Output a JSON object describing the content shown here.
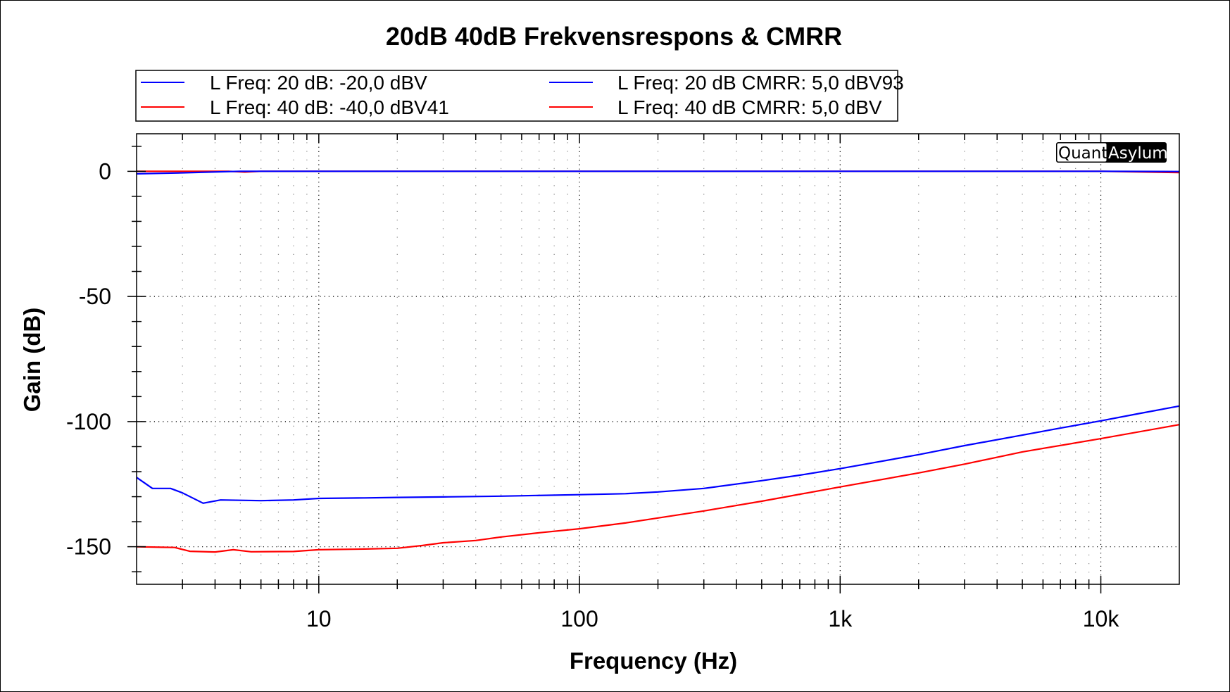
{
  "chart_data": {
    "type": "line",
    "title": "20dB 40dB Frekvensrespons & CMRR",
    "xlabel": "Frequency (Hz)",
    "ylabel": "Gain (dB)",
    "xscale": "log",
    "xlim": [
      2,
      20000
    ],
    "ylim": [
      -165,
      15
    ],
    "x_ticks": [
      {
        "value": 10,
        "label": "10"
      },
      {
        "value": 100,
        "label": "100"
      },
      {
        "value": 1000,
        "label": "1k"
      },
      {
        "value": 10000,
        "label": "10k"
      }
    ],
    "y_ticks": [
      {
        "value": 0,
        "label": "0"
      },
      {
        "value": -50,
        "label": "-50"
      },
      {
        "value": -100,
        "label": "-100"
      },
      {
        "value": -150,
        "label": "-150"
      }
    ],
    "y_minor_step": 10,
    "grid": true,
    "legend_position": "top",
    "watermark": {
      "part1": "Quant",
      "part2": "Asylum"
    },
    "series": [
      {
        "name": "L Freq: 20 dB: -20,0 dBV",
        "color": "#0000ff",
        "x": [
          2,
          3,
          5,
          10,
          100,
          1000,
          10000,
          20000
        ],
        "y": [
          -1.0,
          -0.6,
          0.0,
          0.0,
          0.0,
          0.0,
          0.0,
          -0.1
        ]
      },
      {
        "name": "L Freq: 40 dB: -40,0 dBV41",
        "color": "#ff0000",
        "x": [
          2,
          4.5,
          5.2,
          6,
          10,
          100,
          1000,
          10000,
          20000
        ],
        "y": [
          0.0,
          0.0,
          -0.3,
          0.0,
          0.0,
          0.0,
          0.0,
          0.0,
          -0.5
        ]
      },
      {
        "name": "L Freq: 20 dB CMRR: 5,0 dBV93",
        "color": "#0000ff",
        "x": [
          2,
          2.3,
          2.7,
          3,
          3.6,
          4.2,
          6,
          8,
          10,
          15,
          20,
          30,
          50,
          100,
          150,
          200,
          300,
          500,
          700,
          1000,
          2000,
          3000,
          5000,
          7000,
          10000,
          14000,
          20000
        ],
        "y": [
          -122.3,
          -126.7,
          -126.7,
          -128.5,
          -132.6,
          -131.3,
          -131.6,
          -131.3,
          -130.7,
          -130.5,
          -130.3,
          -130.1,
          -129.8,
          -129.2,
          -128.8,
          -128.1,
          -126.7,
          -123.6,
          -121.4,
          -118.8,
          -113.2,
          -109.6,
          -105.4,
          -102.6,
          -99.7,
          -96.8,
          -93.8
        ]
      },
      {
        "name": "L Freq: 40 dB CMRR: 5,0 dBV",
        "color": "#ff0000",
        "x": [
          2,
          2.5,
          2.8,
          3.2,
          4,
          4.7,
          5.5,
          8,
          10,
          15,
          20,
          25,
          30,
          40,
          50,
          70,
          100,
          150,
          200,
          300,
          500,
          1000,
          2000,
          3000,
          5000,
          10000,
          20000
        ],
        "y": [
          -150.0,
          -150.2,
          -150.3,
          -151.8,
          -152.1,
          -151.2,
          -152.0,
          -151.9,
          -151.2,
          -150.9,
          -150.6,
          -149.5,
          -148.4,
          -147.5,
          -146.1,
          -144.4,
          -142.8,
          -140.5,
          -138.5,
          -135.7,
          -131.8,
          -126.1,
          -120.5,
          -117.0,
          -112.1,
          -106.8,
          -101.2
        ]
      }
    ]
  }
}
